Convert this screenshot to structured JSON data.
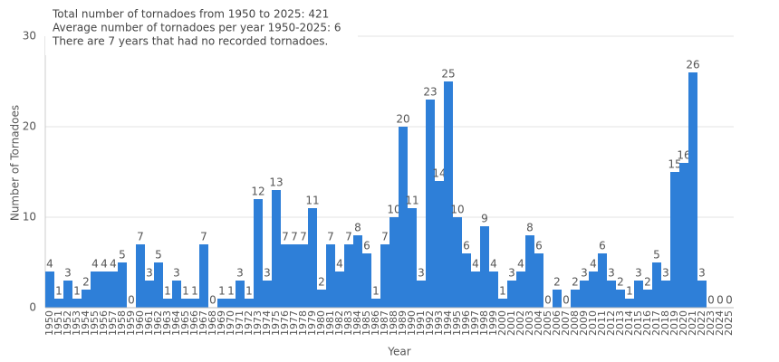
{
  "chart_data": {
    "type": "bar",
    "annotations": [
      "Total number of tornadoes from 1950 to 2025: 421",
      "Average number of tornadoes per year 1950-2025: 6",
      "There are 7 years that had no recorded tornadoes."
    ],
    "x_label": "Year",
    "y_label": "Number of Tornadoes",
    "categories": [
      "1950",
      "1951",
      "1952",
      "1953",
      "1954",
      "1955",
      "1956",
      "1957",
      "1958",
      "1959",
      "1960",
      "1961",
      "1962",
      "1963",
      "1964",
      "1965",
      "1966",
      "1967",
      "1968",
      "1969",
      "1970",
      "1971",
      "1972",
      "1973",
      "1974",
      "1975",
      "1976",
      "1977",
      "1978",
      "1979",
      "1980",
      "1981",
      "1982",
      "1983",
      "1984",
      "1985",
      "1986",
      "1987",
      "1988",
      "1989",
      "1990",
      "1991",
      "1992",
      "1993",
      "1994",
      "1995",
      "1996",
      "1997",
      "1998",
      "1999",
      "2000",
      "2001",
      "2002",
      "2003",
      "2004",
      "2005",
      "2006",
      "2007",
      "2008",
      "2009",
      "2010",
      "2011",
      "2012",
      "2013",
      "2014",
      "2015",
      "2016",
      "2017",
      "2018",
      "2019",
      "2020",
      "2021",
      "2022",
      "2023",
      "2024",
      "2025"
    ],
    "values": [
      4,
      1,
      3,
      1,
      2,
      4,
      4,
      4,
      5,
      0,
      7,
      3,
      5,
      1,
      3,
      1,
      1,
      7,
      0,
      1,
      1,
      3,
      1,
      12,
      3,
      13,
      7,
      7,
      7,
      11,
      2,
      7,
      4,
      7,
      8,
      6,
      1,
      7,
      10,
      20,
      11,
      3,
      23,
      14,
      25,
      10,
      6,
      4,
      9,
      4,
      1,
      3,
      4,
      8,
      6,
      0,
      2,
      0,
      2,
      3,
      4,
      6,
      3,
      2,
      1,
      3,
      2,
      5,
      3,
      15,
      16,
      26,
      3,
      0,
      0,
      0
    ],
    "color": "#2e7fd8",
    "ylim": [
      0,
      30
    ],
    "yticks": [
      0,
      10,
      20,
      30
    ],
    "grid": true
  }
}
